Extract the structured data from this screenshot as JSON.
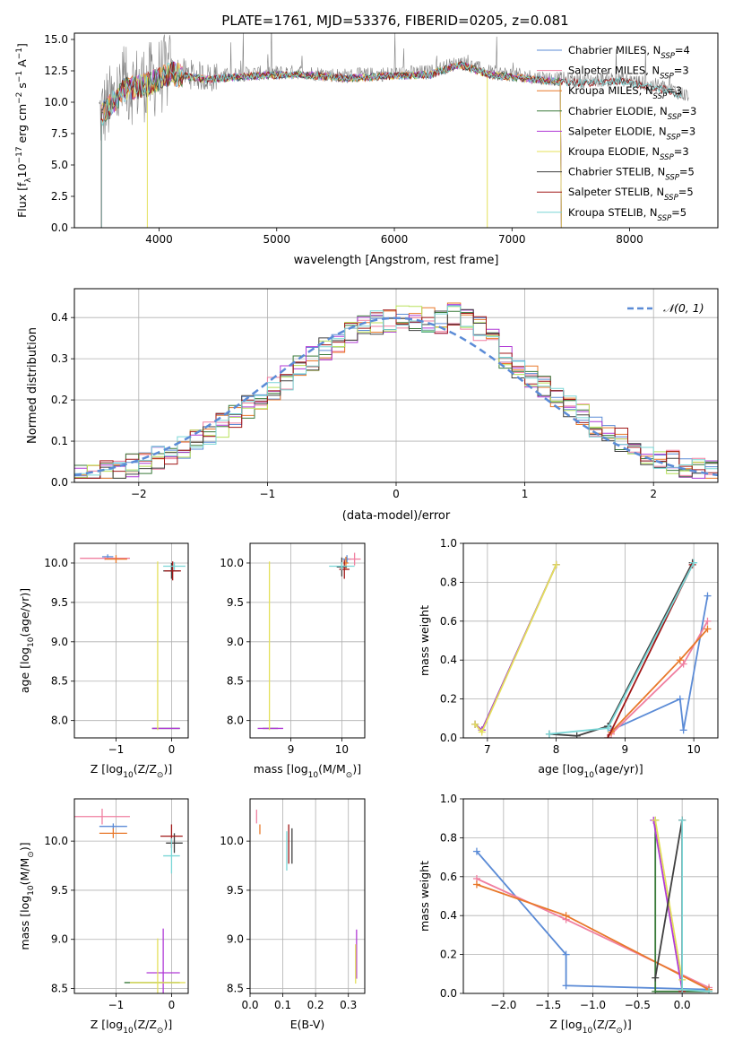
{
  "figure_title": "PLATE=1761, MJD=53376, FIBERID=0205, z=0.081",
  "colors": {
    "chabrier_miles": "#5b8bd6",
    "salpeter_miles": "#f07fa0",
    "kroupa_miles": "#e8782a",
    "chabrier_elodie": "#3a7a3a",
    "salpeter_elodie": "#b03ad6",
    "kroupa_elodie": "#e4e05a",
    "chabrier_stelib": "#404040",
    "salpeter_stelib": "#a01818",
    "kroupa_stelib": "#7ad6d6",
    "data_gray": "#808080",
    "hist_green": "#b8e05a"
  },
  "legend_top": [
    {
      "base": "Chabrier MILES, N",
      "sub": "SSP",
      "tail": "=4",
      "color_key": "chabrier_miles"
    },
    {
      "base": "Salpeter MILES, N",
      "sub": "SSP",
      "tail": "=3",
      "color_key": "salpeter_miles"
    },
    {
      "base": "Kroupa MILES, N",
      "sub": "SSP",
      "tail": "=3",
      "color_key": "kroupa_miles"
    },
    {
      "base": "Chabrier ELODIE, N",
      "sub": "SSP",
      "tail": "=3",
      "color_key": "chabrier_elodie"
    },
    {
      "base": "Salpeter ELODIE, N",
      "sub": "SSP",
      "tail": "=3",
      "color_key": "salpeter_elodie"
    },
    {
      "base": "Kroupa ELODIE, N",
      "sub": "SSP",
      "tail": "=3",
      "color_key": "kroupa_elodie"
    },
    {
      "base": "Chabrier STELIB, N",
      "sub": "SSP",
      "tail": "=5",
      "color_key": "chabrier_stelib"
    },
    {
      "base": "Salpeter STELIB, N",
      "sub": "SSP",
      "tail": "=5",
      "color_key": "salpeter_stelib"
    },
    {
      "base": "Kroupa STELIB, N",
      "sub": "SSP",
      "tail": "=5",
      "color_key": "kroupa_stelib"
    }
  ],
  "chart_data": [
    {
      "id": "spectrum",
      "type": "line",
      "xlabel": "wavelength [Angstrom, rest frame]",
      "ylabel_parts": [
        "Flux [f",
        "λ",
        "10",
        "−17",
        " erg cm",
        "−2",
        " s",
        "−1",
        " A",
        "−1",
        "]"
      ],
      "xlim": [
        3280,
        8750
      ],
      "ylim": [
        0,
        15.5
      ],
      "xticks": [
        4000,
        5000,
        6000,
        7000,
        8000
      ],
      "yticks": [
        0.0,
        2.5,
        5.0,
        7.5,
        10.0,
        12.5,
        15.0
      ],
      "xticklabels": [
        "4000",
        "5000",
        "6000",
        "7000",
        "8000"
      ],
      "yticklabels": [
        "0.0",
        "2.5",
        "5.0",
        "7.5",
        "10.0",
        "12.5",
        "15.0"
      ],
      "continuum": [
        [
          3500,
          9.0
        ],
        [
          3700,
          11.2
        ],
        [
          3900,
          11.6
        ],
        [
          4100,
          12.5
        ],
        [
          4400,
          12.0
        ],
        [
          4800,
          12.3
        ],
        [
          5200,
          12.4
        ],
        [
          5600,
          12.1
        ],
        [
          6000,
          12.3
        ],
        [
          6300,
          12.4
        ],
        [
          6560,
          13.2
        ],
        [
          6800,
          12.4
        ],
        [
          7200,
          12.0
        ],
        [
          7600,
          11.7
        ],
        [
          7900,
          11.9
        ],
        [
          8300,
          11.2
        ],
        [
          8500,
          10.5
        ]
      ],
      "model_range": [
        3490,
        7420
      ]
    },
    {
      "id": "residuals",
      "type": "histogram",
      "xlabel": "(data-model)/error",
      "ylabel": "Normed distribution",
      "xlim": [
        -2.5,
        2.5
      ],
      "ylim": [
        0,
        0.47
      ],
      "xticks": [
        -2,
        -1,
        0,
        1,
        2
      ],
      "yticks": [
        0.0,
        0.1,
        0.2,
        0.3,
        0.4
      ],
      "xticklabels": [
        "−2",
        "−1",
        "0",
        "1",
        "2"
      ],
      "yticklabels": [
        "0.0",
        "0.1",
        "0.2",
        "0.3",
        "0.4"
      ],
      "bin_width": 0.1,
      "legend_label": "𝒩(0, 1)"
    },
    {
      "id": "age_vs_Z",
      "type": "scatter",
      "xlabel_parts": [
        "Z [log",
        "10",
        "(Z/Z",
        "⊙",
        ")]"
      ],
      "ylabel_parts": [
        "age  [log",
        "10",
        "(age/yr)]"
      ],
      "xlim": [
        -1.75,
        0.3
      ],
      "ylim": [
        7.78,
        10.25
      ],
      "xticks": [
        -1,
        0
      ],
      "yticks": [
        8.0,
        8.5,
        9.0,
        9.5,
        10.0
      ],
      "xticklabels": [
        "−1",
        "0"
      ],
      "yticklabels": [
        "8.0",
        "8.5",
        "9.0",
        "9.5",
        "10.0"
      ],
      "points": [
        {
          "c": "chabrier_miles",
          "x": -1.15,
          "y": 10.08,
          "xe": 0.1,
          "ye": 0.03
        },
        {
          "c": "salpeter_miles",
          "x": -1.2,
          "y": 10.06,
          "xe": 0.45,
          "ye": 0.02
        },
        {
          "c": "kroupa_miles",
          "x": -1.0,
          "y": 10.05,
          "xe": 0.2,
          "ye": 0.05
        },
        {
          "c": "chabrier_elodie",
          "x": -0.1,
          "y": 7.9,
          "xe": 0.25,
          "ye": 0.0
        },
        {
          "c": "salpeter_elodie",
          "x": -0.1,
          "y": 7.9,
          "xe": 0.25,
          "ye": 0.0
        },
        {
          "c": "kroupa_elodie",
          "x": -0.25,
          "y": 8.95,
          "xe": 0.0,
          "ye": 1.07
        },
        {
          "c": "chabrier_stelib",
          "x": 0.0,
          "y": 9.9,
          "xe": 0.15,
          "ye": 0.1
        },
        {
          "c": "salpeter_stelib",
          "x": 0.02,
          "y": 9.9,
          "xe": 0.15,
          "ye": 0.12
        },
        {
          "c": "kroupa_stelib",
          "x": 0.05,
          "y": 9.96,
          "xe": 0.2,
          "ye": 0.05
        }
      ]
    },
    {
      "id": "age_vs_mass",
      "type": "scatter",
      "xlabel_parts": [
        "mass [log",
        "10",
        "(M/M",
        "⊙",
        ")]"
      ],
      "xlim": [
        8.2,
        10.45
      ],
      "ylim": [
        7.78,
        10.25
      ],
      "xticks": [
        9,
        10
      ],
      "yticks": [
        8.0,
        8.5,
        9.0,
        9.5,
        10.0
      ],
      "xticklabels": [
        "9",
        "10"
      ],
      "yticklabels": [
        "8.0",
        "8.5",
        "9.0",
        "9.5",
        "10.0"
      ],
      "points": [
        {
          "c": "chabrier_miles",
          "x": 10.1,
          "y": 10.05,
          "xe": 0.08,
          "ye": 0.05
        },
        {
          "c": "salpeter_miles",
          "x": 10.25,
          "y": 10.05,
          "xe": 0.12,
          "ye": 0.08
        },
        {
          "c": "kroupa_miles",
          "x": 10.08,
          "y": 10.0,
          "xe": 0.05,
          "ye": 0.08
        },
        {
          "c": "chabrier_elodie",
          "x": 8.6,
          "y": 7.9,
          "xe": 0.15,
          "ye": 0.0
        },
        {
          "c": "salpeter_elodie",
          "x": 8.6,
          "y": 7.9,
          "xe": 0.25,
          "ye": 0.0
        },
        {
          "c": "kroupa_elodie",
          "x": 8.58,
          "y": 8.95,
          "xe": 0.0,
          "ye": 1.07
        },
        {
          "c": "chabrier_stelib",
          "x": 10.0,
          "y": 9.95,
          "xe": 0.1,
          "ye": 0.12
        },
        {
          "c": "salpeter_stelib",
          "x": 10.05,
          "y": 9.92,
          "xe": 0.1,
          "ye": 0.12
        },
        {
          "c": "kroupa_stelib",
          "x": 10.0,
          "y": 9.96,
          "xe": 0.25,
          "ye": 0.05
        }
      ]
    },
    {
      "id": "weight_vs_age",
      "type": "line",
      "xlabel_parts": [
        "age  [log",
        "10",
        "(age/yr)]"
      ],
      "ylabel": "mass weight",
      "xlim": [
        6.65,
        10.35
      ],
      "ylim": [
        0,
        1.0
      ],
      "xticks": [
        7,
        8,
        9,
        10
      ],
      "yticks": [
        0.0,
        0.2,
        0.4,
        0.6,
        0.8,
        1.0
      ],
      "xticklabels": [
        "7",
        "8",
        "9",
        "10"
      ],
      "yticklabels": [
        "0.0",
        "0.2",
        "0.4",
        "0.6",
        "0.8",
        "1.0"
      ],
      "series": [
        {
          "c": "chabrier_miles",
          "x": [
            8.8,
            9.8,
            9.85,
            10.2
          ],
          "y": [
            0.04,
            0.2,
            0.04,
            0.73
          ]
        },
        {
          "c": "salpeter_miles",
          "x": [
            8.8,
            9.85,
            10.2
          ],
          "y": [
            0.02,
            0.38,
            0.6
          ]
        },
        {
          "c": "kroupa_miles",
          "x": [
            8.8,
            9.8,
            10.2
          ],
          "y": [
            0.03,
            0.4,
            0.56
          ]
        },
        {
          "c": "chabrier_elodie",
          "x": [
            6.82,
            6.92,
            8.0
          ],
          "y": [
            0.07,
            0.04,
            0.89
          ]
        },
        {
          "c": "salpeter_elodie",
          "x": [
            6.82,
            6.92,
            8.0
          ],
          "y": [
            0.07,
            0.04,
            0.89
          ]
        },
        {
          "c": "kroupa_elodie",
          "x": [
            6.82,
            6.92,
            8.0
          ],
          "y": [
            0.07,
            0.03,
            0.89
          ]
        },
        {
          "c": "chabrier_stelib",
          "x": [
            7.9,
            8.3,
            8.75,
            9.98
          ],
          "y": [
            0.02,
            0.01,
            0.06,
            0.9
          ]
        },
        {
          "c": "salpeter_stelib",
          "x": [
            8.75,
            9.98
          ],
          "y": [
            0.0,
            0.89
          ]
        },
        {
          "c": "kroupa_stelib",
          "x": [
            7.9,
            8.75,
            10.0
          ],
          "y": [
            0.02,
            0.05,
            0.9
          ]
        }
      ]
    },
    {
      "id": "mass_vs_Z",
      "type": "scatter",
      "xlabel_parts": [
        "Z [log",
        "10",
        "(Z/Z",
        "⊙",
        ")]"
      ],
      "ylabel_parts": [
        "mass [log",
        "10",
        "(M/M",
        "⊙",
        ")]"
      ],
      "xlim": [
        -1.75,
        0.3
      ],
      "ylim": [
        8.45,
        10.43
      ],
      "xticks": [
        -1,
        0
      ],
      "yticks": [
        8.5,
        9.0,
        9.5,
        10.0
      ],
      "xticklabels": [
        "−1",
        "0"
      ],
      "yticklabels": [
        "8.5",
        "9.0",
        "9.5",
        "10.0"
      ],
      "points": [
        {
          "c": "chabrier_miles",
          "x": -1.05,
          "y": 10.15,
          "xe": 0.25,
          "ye": 0.03
        },
        {
          "c": "salpeter_miles",
          "x": -1.25,
          "y": 10.25,
          "xe": 0.5,
          "ye": 0.08
        },
        {
          "c": "kroupa_miles",
          "x": -1.05,
          "y": 10.08,
          "xe": 0.25,
          "ye": 0.05
        },
        {
          "c": "chabrier_elodie",
          "x": -0.35,
          "y": 8.56,
          "xe": 0.5,
          "ye": 0.0
        },
        {
          "c": "salpeter_elodie",
          "x": -0.15,
          "y": 8.66,
          "xe": 0.3,
          "ye": 0.45
        },
        {
          "c": "kroupa_elodie",
          "x": -0.25,
          "y": 8.56,
          "xe": 0.5,
          "ye": 0.45
        },
        {
          "c": "chabrier_stelib",
          "x": 0.05,
          "y": 9.98,
          "xe": 0.15,
          "ye": 0.1
        },
        {
          "c": "salpeter_stelib",
          "x": 0.0,
          "y": 10.05,
          "xe": 0.2,
          "ye": 0.12
        },
        {
          "c": "kroupa_stelib",
          "x": 0.0,
          "y": 9.85,
          "xe": 0.15,
          "ye": 0.18
        }
      ]
    },
    {
      "id": "ebv",
      "type": "scatter",
      "xlabel": "E(B-V)",
      "xlim": [
        0.0,
        0.35
      ],
      "ylim": [
        8.45,
        10.43
      ],
      "xticks": [
        0.0,
        0.1,
        0.2,
        0.3
      ],
      "yticks": [
        8.5,
        9.0,
        9.5,
        10.0
      ],
      "xticklabels": [
        "0.0",
        "0.1",
        "0.2",
        "0.3"
      ],
      "yticklabels": [
        "8.5",
        "9.0",
        "9.5",
        "10.0"
      ],
      "points": [
        {
          "c": "salpeter_miles",
          "x": 0.02,
          "y": 10.25,
          "xe": 0,
          "ye": 0.07
        },
        {
          "c": "kroupa_miles",
          "x": 0.03,
          "y": 10.12,
          "xe": 0,
          "ye": 0.05
        },
        {
          "c": "kroupa_stelib",
          "x": 0.112,
          "y": 9.9,
          "xe": 0,
          "ye": 0.2
        },
        {
          "c": "salpeter_stelib",
          "x": 0.118,
          "y": 9.97,
          "xe": 0,
          "ye": 0.2
        },
        {
          "c": "chabrier_stelib",
          "x": 0.128,
          "y": 9.95,
          "xe": 0,
          "ye": 0.18
        },
        {
          "c": "salpeter_elodie",
          "x": 0.325,
          "y": 8.85,
          "xe": 0,
          "ye": 0.25
        },
        {
          "c": "kroupa_elodie",
          "x": 0.322,
          "y": 8.75,
          "xe": 0,
          "ye": 0.2
        }
      ]
    },
    {
      "id": "weight_vs_Z",
      "type": "line",
      "xlabel_parts": [
        "Z [log",
        "10",
        "(Z/Z",
        "⊙",
        ")]"
      ],
      "ylabel": "mass weight",
      "xlim": [
        -2.45,
        0.4
      ],
      "ylim": [
        0,
        1.0
      ],
      "xticks": [
        -2.0,
        -1.5,
        -1.0,
        -0.5,
        0.0
      ],
      "yticks": [
        0.0,
        0.2,
        0.4,
        0.6,
        0.8,
        1.0
      ],
      "xticklabels": [
        "−2.0",
        "−1.5",
        "−1.0",
        "−0.5",
        "0.0"
      ],
      "yticklabels": [
        "0.0",
        "0.2",
        "0.4",
        "0.6",
        "0.8",
        "1.0"
      ],
      "series": [
        {
          "c": "chabrier_miles",
          "x": [
            -2.3,
            -1.3,
            -1.3,
            0.3
          ],
          "y": [
            0.73,
            0.2,
            0.04,
            0.02
          ]
        },
        {
          "c": "salpeter_miles",
          "x": [
            -2.3,
            -1.3,
            0.3
          ],
          "y": [
            0.59,
            0.38,
            0.03
          ]
        },
        {
          "c": "kroupa_miles",
          "x": [
            -2.3,
            -1.3,
            0.3
          ],
          "y": [
            0.56,
            0.4,
            0.02
          ]
        },
        {
          "c": "chabrier_elodie",
          "x": [
            -0.3,
            -0.3,
            0.3
          ],
          "y": [
            0.89,
            0.01,
            0.01
          ]
        },
        {
          "c": "salpeter_elodie",
          "x": [
            -0.32,
            0.0
          ],
          "y": [
            0.89,
            0.02
          ]
        },
        {
          "c": "kroupa_elodie",
          "x": [
            -0.3,
            0.0,
            0.0
          ],
          "y": [
            0.89,
            0.07,
            0.01
          ]
        },
        {
          "c": "chabrier_stelib",
          "x": [
            -0.3,
            0.0,
            0.0
          ],
          "y": [
            0.08,
            0.89,
            0.01
          ]
        },
        {
          "c": "salpeter_stelib",
          "x": [
            0.0,
            0.0
          ],
          "y": [
            0.89,
            0.01
          ]
        },
        {
          "c": "kroupa_stelib",
          "x": [
            0.0,
            0.0,
            0.3
          ],
          "y": [
            0.89,
            0.02,
            0.01
          ]
        }
      ]
    }
  ]
}
